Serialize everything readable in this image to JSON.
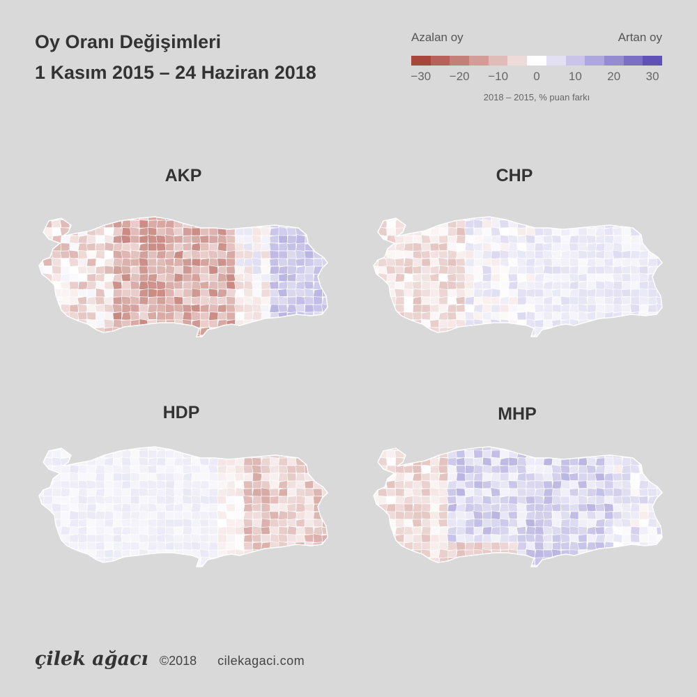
{
  "title": {
    "line1": "Oy Oranı Değişimleri",
    "line2": "1 Kasım 2015 – 24 Haziran 2018"
  },
  "legend": {
    "left_label": "Azalan oy",
    "right_label": "Artan oy",
    "ticks": [
      "−30",
      "−20",
      "−10",
      "0",
      "10",
      "20",
      "30"
    ],
    "caption": "2018 – 2015, % puan farkı",
    "colors": [
      "#a8453d",
      "#b8615a",
      "#c47f78",
      "#d29d97",
      "#e0bcb8",
      "#eedad8",
      "#ffffff",
      "#e2e0f2",
      "#c9c4e8",
      "#aea7dc",
      "#948bd0",
      "#7a6fc4",
      "#5f51b6"
    ]
  },
  "maps": [
    {
      "party": "AKP",
      "trend": "akp"
    },
    {
      "party": "CHP",
      "trend": "chp"
    },
    {
      "party": "HDP",
      "trend": "hdp"
    },
    {
      "party": "MHP",
      "trend": "mhp"
    }
  ],
  "footer": {
    "brand": "çilek ağacı",
    "copyright": "©2018",
    "site": "cilekagaci.com"
  }
}
